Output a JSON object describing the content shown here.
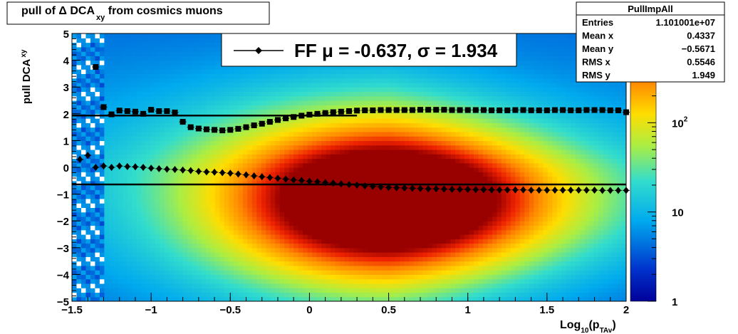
{
  "chart_data": {
    "type": "heatmap",
    "title": "pull of Δ DCA",
    "title_sub": "xy",
    "title_tail": " from cosmics muons",
    "xlabel": "Log",
    "xlabel_sub1": "10",
    "xlabel_mid": "(p",
    "xlabel_sub2": "TAv",
    "xlabel_end": ")",
    "ylabel": "pull DCA",
    "ylabel_sub": "xy",
    "xlim": [
      -1.5,
      2
    ],
    "ylim": [
      -5,
      5
    ],
    "x_ticks": [
      {
        "value": -1.5,
        "label": "−1.5"
      },
      {
        "value": -1,
        "label": "−1"
      },
      {
        "value": -0.5,
        "label": "−0.5"
      },
      {
        "value": 0,
        "label": "0"
      },
      {
        "value": 0.5,
        "label": "0.5"
      },
      {
        "value": 1,
        "label": "1"
      },
      {
        "value": 1.5,
        "label": "1.5"
      },
      {
        "value": 2,
        "label": "2"
      }
    ],
    "y_ticks": [
      {
        "value": 5,
        "label": "5"
      },
      {
        "value": 4,
        "label": "4"
      },
      {
        "value": 3,
        "label": "3"
      },
      {
        "value": 2,
        "label": "2"
      },
      {
        "value": 1,
        "label": "1"
      },
      {
        "value": 0,
        "label": "0"
      },
      {
        "value": -1,
        "label": "−1"
      },
      {
        "value": -2,
        "label": "−2"
      },
      {
        "value": -3,
        "label": "−3"
      },
      {
        "value": -4,
        "label": "−4"
      },
      {
        "value": -5,
        "label": "−5"
      }
    ],
    "colorbar": {
      "scale": "log",
      "range": [
        1,
        1000
      ],
      "ticks": [
        {
          "value": 1,
          "label": "1"
        },
        {
          "value": 10,
          "label": "10"
        },
        {
          "value": 100,
          "label": "10",
          "sup": "2"
        }
      ]
    },
    "legend": {
      "position": "top-center",
      "text": "FF μ = -0.637, σ =   1.934"
    },
    "stats_box": {
      "title": "PullImpAll",
      "rows": [
        {
          "label": "Entries",
          "value": "1.101001e+07"
        },
        {
          "label": "Mean x",
          "value": "0.4337"
        },
        {
          "label": "Mean y",
          "value": "−0.5671"
        },
        {
          "label": "RMS x",
          "value": "0.5546"
        },
        {
          "label": "RMS y",
          "value": "1.949"
        }
      ]
    },
    "fit_lines": [
      {
        "kind": "mean",
        "y": -0.637,
        "x_range": [
          -1.5,
          2
        ]
      },
      {
        "kind": "sigma",
        "y": 1.934,
        "x_range": [
          -1.5,
          0.3
        ]
      }
    ],
    "series": [
      {
        "marker": "square",
        "x": [
          -1.35,
          -1.3,
          -1.25,
          -1.2,
          -1.15,
          -1.1,
          -1.05,
          -1.0,
          -0.95,
          -0.9,
          -0.85,
          -0.8,
          -0.75,
          -0.7,
          -0.65,
          -0.6,
          -0.55,
          -0.5,
          -0.45,
          -0.4,
          -0.35,
          -0.3,
          -0.25,
          -0.2,
          -0.15,
          -0.1,
          -0.05,
          0.0,
          0.05,
          0.1,
          0.15,
          0.2,
          0.25,
          0.3,
          0.35,
          0.4,
          0.45,
          0.5,
          0.55,
          0.6,
          0.65,
          0.7,
          0.75,
          0.8,
          0.85,
          0.9,
          0.95,
          1.0,
          1.05,
          1.1,
          1.15,
          1.2,
          1.25,
          1.3,
          1.35,
          1.4,
          1.45,
          1.5,
          1.55,
          1.6,
          1.65,
          1.7,
          1.75,
          1.8,
          1.85,
          1.9,
          1.95,
          2.0
        ],
        "y": [
          3.75,
          2.25,
          1.98,
          2.12,
          2.1,
          2.08,
          2.0,
          2.15,
          2.1,
          2.1,
          2.05,
          1.7,
          1.5,
          1.45,
          1.42,
          1.4,
          1.38,
          1.4,
          1.44,
          1.5,
          1.57,
          1.63,
          1.7,
          1.77,
          1.83,
          1.88,
          1.93,
          1.97,
          2.0,
          2.03,
          2.06,
          2.08,
          2.1,
          2.12,
          2.13,
          2.13,
          2.14,
          2.14,
          2.14,
          2.14,
          2.14,
          2.15,
          2.15,
          2.15,
          2.15,
          2.14,
          2.14,
          2.14,
          2.14,
          2.14,
          2.13,
          2.13,
          2.13,
          2.14,
          2.14,
          2.13,
          2.13,
          2.13,
          2.14,
          2.14,
          2.13,
          2.13,
          2.14,
          2.14,
          2.14,
          2.13,
          2.13,
          2.06
        ]
      },
      {
        "marker": "diamond",
        "x": [
          -1.45,
          -1.4,
          -1.35,
          -1.3,
          -1.25,
          -1.2,
          -1.15,
          -1.1,
          -1.05,
          -1.0,
          -0.95,
          -0.9,
          -0.85,
          -0.8,
          -0.75,
          -0.7,
          -0.65,
          -0.6,
          -0.55,
          -0.5,
          -0.45,
          -0.4,
          -0.35,
          -0.3,
          -0.25,
          -0.2,
          -0.15,
          -0.1,
          -0.05,
          0.0,
          0.05,
          0.1,
          0.15,
          0.2,
          0.25,
          0.3,
          0.35,
          0.4,
          0.45,
          0.5,
          0.55,
          0.6,
          0.65,
          0.7,
          0.75,
          0.8,
          0.85,
          0.9,
          0.95,
          1.0,
          1.05,
          1.1,
          1.15,
          1.2,
          1.25,
          1.3,
          1.35,
          1.4,
          1.45,
          1.5,
          1.55,
          1.6,
          1.65,
          1.7,
          1.75,
          1.8,
          1.85,
          1.9,
          1.95,
          2.0
        ],
        "y": [
          0.3,
          0.45,
          0.0,
          0.05,
          0.0,
          0.05,
          0.03,
          0.02,
          0.0,
          -0.03,
          -0.05,
          -0.07,
          -0.08,
          -0.1,
          -0.12,
          -0.15,
          -0.17,
          -0.18,
          -0.2,
          -0.22,
          -0.25,
          -0.28,
          -0.32,
          -0.35,
          -0.38,
          -0.41,
          -0.44,
          -0.47,
          -0.49,
          -0.52,
          -0.54,
          -0.57,
          -0.59,
          -0.62,
          -0.64,
          -0.66,
          -0.69,
          -0.71,
          -0.73,
          -0.75,
          -0.76,
          -0.77,
          -0.78,
          -0.79,
          -0.8,
          -0.8,
          -0.81,
          -0.82,
          -0.82,
          -0.82,
          -0.83,
          -0.83,
          -0.84,
          -0.84,
          -0.84,
          -0.84,
          -0.84,
          -0.85,
          -0.85,
          -0.85,
          -0.85,
          -0.85,
          -0.85,
          -0.85,
          -0.85,
          -0.85,
          -0.86,
          -0.86,
          -0.86,
          -0.86
        ]
      }
    ],
    "density": {
      "peak_x": 0.5,
      "peak_y": -1.3,
      "peak_value": 1000
    }
  }
}
